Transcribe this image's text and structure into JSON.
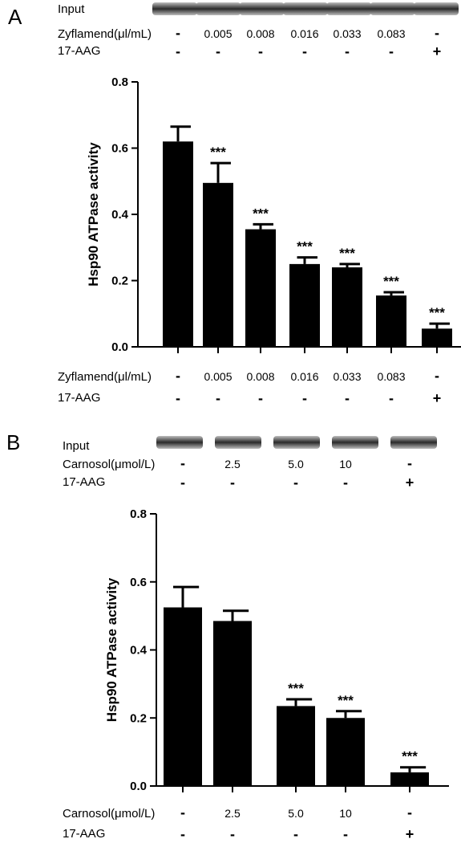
{
  "panels": [
    {
      "letter": "A",
      "input_label": "Input",
      "treatment_label": "Zyflamend(μl/mL)",
      "inhibitor_label": "17-AAG",
      "treatment_values": [
        "-",
        "0.005",
        "0.008",
        "0.016",
        "0.033",
        "0.083",
        "-"
      ],
      "inhibitor_values": [
        "-",
        "-",
        "-",
        "-",
        "-",
        "-",
        "+"
      ],
      "significance": [
        "",
        "***",
        "***",
        "***",
        "***",
        "***",
        "***"
      ]
    },
    {
      "letter": "B",
      "input_label": "Input",
      "treatment_label": "Carnosol(μmol/L)",
      "inhibitor_label": "17-AAG",
      "treatment_values": [
        "-",
        "2.5",
        "5.0",
        "10",
        "-"
      ],
      "inhibitor_values": [
        "-",
        "-",
        "-",
        "-",
        "+"
      ],
      "significance": [
        "",
        "",
        "***",
        "***",
        "***"
      ]
    }
  ],
  "chart_data": [
    {
      "type": "bar",
      "ylabel": "Hsp90 ATPase activity",
      "ylim": [
        0,
        0.8
      ],
      "yticks": [
        "0.0",
        "0.2",
        "0.4",
        "0.6",
        "0.8"
      ],
      "categories": [
        "- / -",
        "0.005 / -",
        "0.008 / -",
        "0.016 / -",
        "0.033 / -",
        "0.083 / -",
        "- / +"
      ],
      "values": [
        0.62,
        0.495,
        0.355,
        0.25,
        0.24,
        0.155,
        0.055
      ],
      "errors": [
        0.045,
        0.06,
        0.015,
        0.02,
        0.01,
        0.01,
        0.015
      ],
      "bar_color": "#000000"
    },
    {
      "type": "bar",
      "ylabel": "Hsp90 ATPase activity",
      "ylim": [
        0,
        0.8
      ],
      "yticks": [
        "0.0",
        "0.2",
        "0.4",
        "0.6",
        "0.8"
      ],
      "categories": [
        "- / -",
        "2.5 / -",
        "5.0 / -",
        "10 / -",
        "- / +"
      ],
      "values": [
        0.525,
        0.485,
        0.235,
        0.2,
        0.04
      ],
      "errors": [
        0.06,
        0.03,
        0.02,
        0.02,
        0.015
      ],
      "bar_color": "#000000"
    }
  ]
}
